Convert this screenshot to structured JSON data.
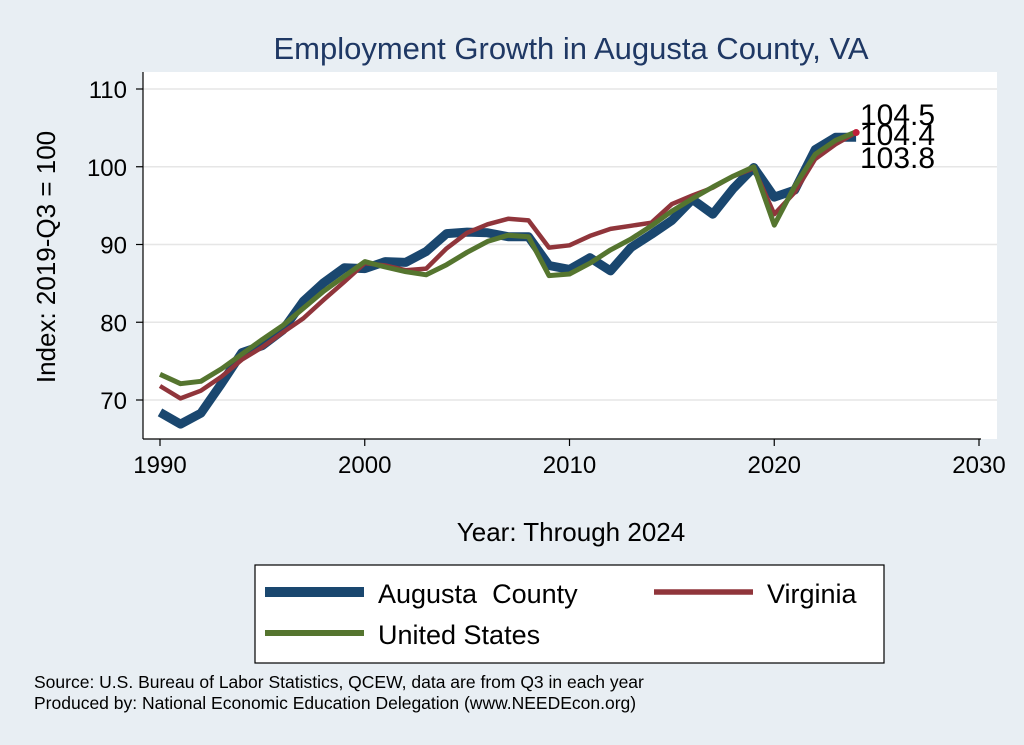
{
  "chart_data": {
    "type": "line",
    "title": "Employment Growth in Augusta County, VA",
    "xlabel": "Year: Through 2024",
    "ylabel": "Index: 2019-Q3 = 100",
    "xlim": [
      1990,
      2030
    ],
    "ylim": [
      65,
      110
    ],
    "xticks": [
      "1990",
      "2000",
      "2010",
      "2020",
      "2030"
    ],
    "yticks": [
      "70",
      "80",
      "90",
      "100",
      "110"
    ],
    "grid": "horizontal",
    "x": [
      1990,
      1991,
      1992,
      1993,
      1994,
      1995,
      1996,
      1997,
      1998,
      1999,
      2000,
      2001,
      2002,
      2003,
      2004,
      2005,
      2006,
      2007,
      2008,
      2009,
      2010,
      2011,
      2012,
      2013,
      2014,
      2015,
      2016,
      2017,
      2018,
      2019,
      2020,
      2021,
      2022,
      2023,
      2024
    ],
    "series": [
      {
        "name": "Augusta  County",
        "color": "#1a476f",
        "values": [
          68.4,
          66.9,
          68.3,
          72.1,
          76.1,
          77.0,
          79.0,
          82.7,
          85.1,
          87.0,
          86.9,
          87.8,
          87.7,
          89.1,
          91.4,
          91.6,
          91.5,
          91.0,
          91.0,
          87.3,
          86.8,
          88.3,
          86.6,
          89.6,
          91.3,
          93.1,
          95.8,
          93.9,
          97.2,
          99.9,
          96.1,
          97.0,
          102.2,
          103.8,
          103.8
        ],
        "end_label": "103.8"
      },
      {
        "name": "Virginia",
        "color": "#90353b",
        "values": [
          71.8,
          70.2,
          71.2,
          73.0,
          75.2,
          76.8,
          78.7,
          80.5,
          82.9,
          85.2,
          87.6,
          87.3,
          86.7,
          86.9,
          89.5,
          91.5,
          92.6,
          93.3,
          93.1,
          89.6,
          89.9,
          91.1,
          92.0,
          92.4,
          92.8,
          95.2,
          96.3,
          97.3,
          98.8,
          99.8,
          93.9,
          96.7,
          101.0,
          102.9,
          104.4
        ],
        "end_label": "104.4"
      },
      {
        "name": "United States",
        "color": "#55752f",
        "values": [
          73.3,
          72.1,
          72.4,
          74.0,
          75.9,
          77.8,
          79.6,
          81.8,
          84.0,
          85.9,
          87.8,
          87.1,
          86.5,
          86.1,
          87.4,
          89.0,
          90.4,
          91.2,
          91.0,
          86.0,
          86.2,
          87.6,
          89.3,
          90.7,
          92.4,
          94.3,
          95.9,
          97.4,
          98.8,
          100.0,
          92.5,
          97.5,
          101.6,
          103.4,
          104.5
        ],
        "end_label": "104.5"
      }
    ],
    "legend": "bottom",
    "legend_entries": [
      "Augusta  County",
      "Virginia",
      "United States"
    ]
  },
  "footnotes": {
    "source": "Source: U.S. Bureau of Labor Statistics, QCEW, data are from Q3 in each year",
    "produced_by": "Produced by: National Economic Education Delegation (www.NEEDEcon.org)"
  },
  "colors": {
    "background": "#e8eef3",
    "plot_region": "#ffffff",
    "title": "#1f3864"
  }
}
